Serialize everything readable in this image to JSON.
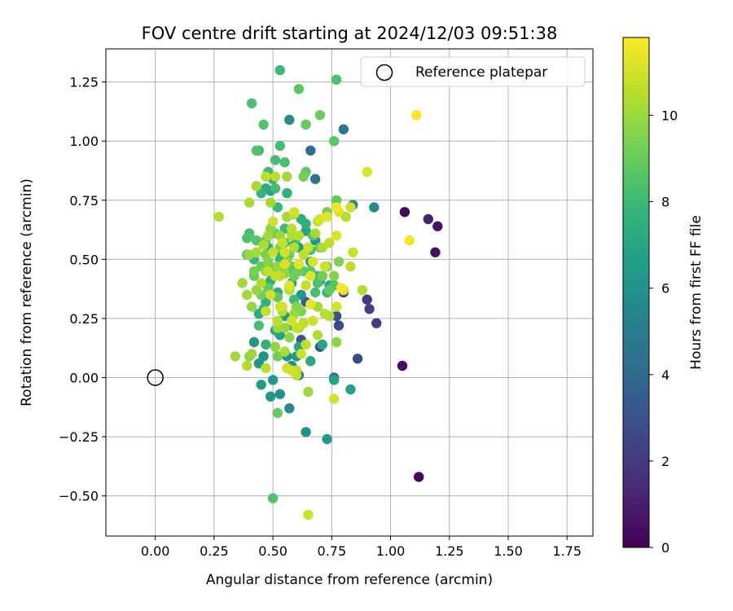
{
  "chart_data": {
    "type": "scatter",
    "title": "FOV centre drift starting at 2024/12/03 09:51:38",
    "xlabel": "Angular distance from reference (arcmin)",
    "ylabel": "Rotation from reference (arcmin)",
    "xlim": [
      -0.21,
      1.86
    ],
    "ylim": [
      -0.67,
      1.39
    ],
    "x_ticks": [
      0.0,
      0.25,
      0.5,
      0.75,
      1.0,
      1.25,
      1.5,
      1.75
    ],
    "x_tick_labels": [
      "0.00",
      "0.25",
      "0.50",
      "0.75",
      "1.00",
      "1.25",
      "1.50",
      "1.75"
    ],
    "y_ticks": [
      -0.5,
      -0.25,
      0.0,
      0.25,
      0.5,
      0.75,
      1.0,
      1.25
    ],
    "y_tick_labels": [
      "−0.50",
      "−0.25",
      "0.00",
      "0.25",
      "0.50",
      "0.75",
      "1.00",
      "1.25"
    ],
    "grid": true,
    "legend": {
      "position": "top-right",
      "entries": [
        "Reference platepar"
      ]
    },
    "reference_point": {
      "label": "Reference platepar",
      "x": 0.0,
      "y": 0.0
    },
    "colorbar": {
      "label": "Hours from first FF file",
      "colormap": "viridis",
      "range": [
        0,
        11.8
      ],
      "ticks": [
        0,
        2,
        4,
        6,
        8,
        10
      ],
      "tick_labels": [
        "0",
        "2",
        "4",
        "6",
        "8",
        "10"
      ]
    },
    "colormap_stops": [
      "#440154",
      "#482878",
      "#3e4989",
      "#31688e",
      "#26828e",
      "#1f9e89",
      "#35b779",
      "#6ece58",
      "#b5de2b",
      "#fde725"
    ],
    "points": [
      [
        1.06,
        0.7,
        0.3
      ],
      [
        1.12,
        -0.42,
        0.2
      ],
      [
        1.05,
        0.05,
        0.4
      ],
      [
        1.19,
        0.53,
        0.5
      ],
      [
        1.2,
        0.64,
        0.6
      ],
      [
        1.16,
        0.67,
        1.1
      ],
      [
        0.94,
        0.23,
        2.1
      ],
      [
        0.91,
        0.29,
        2.3
      ],
      [
        0.9,
        0.33,
        2.0
      ],
      [
        0.86,
        0.08,
        2.6
      ],
      [
        0.78,
        0.22,
        2.7
      ],
      [
        0.8,
        0.36,
        2.4
      ],
      [
        0.77,
        0.26,
        3.0
      ],
      [
        0.7,
        0.13,
        3.1
      ],
      [
        0.62,
        0.16,
        3.3
      ],
      [
        0.64,
        0.32,
        3.6
      ],
      [
        0.68,
        0.84,
        4.5
      ],
      [
        0.66,
        0.96,
        4.2
      ],
      [
        0.8,
        1.05,
        4.8
      ],
      [
        0.84,
        0.73,
        5.5
      ],
      [
        0.93,
        0.72,
        5.6
      ],
      [
        0.57,
        1.09,
        5.8
      ],
      [
        0.64,
        -0.23,
        6.0
      ],
      [
        0.73,
        -0.26,
        6.4
      ],
      [
        0.83,
        -0.05,
        6.7
      ],
      [
        0.57,
        -0.13,
        5.7
      ],
      [
        0.49,
        -0.08,
        6.2
      ],
      [
        0.5,
        -0.01,
        6.3
      ],
      [
        0.53,
        -0.07,
        6.0
      ],
      [
        0.61,
        0.01,
        5.2
      ],
      [
        0.76,
        0.0,
        4.3
      ],
      [
        0.76,
        -0.01,
        6.9
      ],
      [
        0.66,
        0.07,
        7.1
      ],
      [
        0.61,
        0.13,
        7.0
      ],
      [
        0.53,
        0.18,
        6.8
      ],
      [
        0.6,
        0.09,
        6.5
      ],
      [
        0.56,
        0.09,
        6.0
      ],
      [
        0.58,
        0.05,
        5.9
      ],
      [
        0.44,
        0.06,
        6.3
      ],
      [
        0.42,
        0.15,
        6.1
      ],
      [
        0.45,
        -0.03,
        6.6
      ],
      [
        0.46,
        0.09,
        5.9
      ],
      [
        0.55,
        0.26,
        6.4
      ],
      [
        0.62,
        0.35,
        6.2
      ],
      [
        0.7,
        0.41,
        6.5
      ],
      [
        0.74,
        0.39,
        7.0
      ],
      [
        0.58,
        0.4,
        6.8
      ],
      [
        0.66,
        0.49,
        6.4
      ],
      [
        0.68,
        0.58,
        6.1
      ],
      [
        0.59,
        0.56,
        6.9
      ],
      [
        0.52,
        0.36,
        7.2
      ],
      [
        0.49,
        0.41,
        7.4
      ],
      [
        0.44,
        0.27,
        7.3
      ],
      [
        0.47,
        0.32,
        7.6
      ],
      [
        0.53,
        0.5,
        7.8
      ],
      [
        0.55,
        0.63,
        8.0
      ],
      [
        0.62,
        0.67,
        7.4
      ],
      [
        0.64,
        0.65,
        7.5
      ],
      [
        0.56,
        0.78,
        7.6
      ],
      [
        0.5,
        0.84,
        7.4
      ],
      [
        0.45,
        0.78,
        7.7
      ],
      [
        0.47,
        0.8,
        7.2
      ],
      [
        0.52,
        0.72,
        7.9
      ],
      [
        0.51,
        0.8,
        8.1
      ],
      [
        0.48,
        0.87,
        8.0
      ],
      [
        0.53,
        0.98,
        8.2
      ],
      [
        0.51,
        0.92,
        8.3
      ],
      [
        0.44,
        0.96,
        8.0
      ],
      [
        0.43,
        0.96,
        8.5
      ],
      [
        0.41,
        1.16,
        8.4
      ],
      [
        0.46,
        1.07,
        8.6
      ],
      [
        0.55,
        0.91,
        8.3
      ],
      [
        0.53,
        1.3,
        8.0
      ],
      [
        0.61,
        1.22,
        8.7
      ],
      [
        0.64,
        1.07,
        9.0
      ],
      [
        0.77,
        1.26,
        8.4
      ],
      [
        0.7,
        1.11,
        9.1
      ],
      [
        0.76,
        1.0,
        8.7
      ],
      [
        0.63,
        0.85,
        9.3
      ],
      [
        0.64,
        0.87,
        8.8
      ],
      [
        0.77,
        0.75,
        8.9
      ],
      [
        0.73,
        0.7,
        9.3
      ],
      [
        0.67,
        0.6,
        8.5
      ],
      [
        0.6,
        0.59,
        8.2
      ],
      [
        0.55,
        0.57,
        8.6
      ],
      [
        0.51,
        0.61,
        8.9
      ],
      [
        0.47,
        0.58,
        9.0
      ],
      [
        0.43,
        0.58,
        8.6
      ],
      [
        0.39,
        0.59,
        8.4
      ],
      [
        0.39,
        0.52,
        8.7
      ],
      [
        0.4,
        0.61,
        8.3
      ],
      [
        0.42,
        0.43,
        8.9
      ],
      [
        0.45,
        0.47,
        9.0
      ],
      [
        0.5,
        0.46,
        8.6
      ],
      [
        0.58,
        0.47,
        8.8
      ],
      [
        0.61,
        0.45,
        9.2
      ],
      [
        0.66,
        0.45,
        8.7
      ],
      [
        0.69,
        0.4,
        8.4
      ],
      [
        0.74,
        0.37,
        8.9
      ],
      [
        0.71,
        0.43,
        9.2
      ],
      [
        0.76,
        0.39,
        8.5
      ],
      [
        0.73,
        0.47,
        9.4
      ],
      [
        0.78,
        0.49,
        9.5
      ],
      [
        0.76,
        0.43,
        9.6
      ],
      [
        0.7,
        0.55,
        9.0
      ],
      [
        0.6,
        0.3,
        9.6
      ],
      [
        0.57,
        0.38,
        9.4
      ],
      [
        0.55,
        0.44,
        9.8
      ],
      [
        0.52,
        0.47,
        9.9
      ],
      [
        0.48,
        0.49,
        9.6
      ],
      [
        0.47,
        0.45,
        10.0
      ],
      [
        0.43,
        0.37,
        9.8
      ],
      [
        0.41,
        0.3,
        9.9
      ],
      [
        0.39,
        0.35,
        10.1
      ],
      [
        0.37,
        0.4,
        10.2
      ],
      [
        0.4,
        0.52,
        10.0
      ],
      [
        0.43,
        0.53,
        10.1
      ],
      [
        0.46,
        0.56,
        10.3
      ],
      [
        0.53,
        0.6,
        10.0
      ],
      [
        0.56,
        0.68,
        10.2
      ],
      [
        0.59,
        0.69,
        10.4
      ],
      [
        0.56,
        0.85,
        10.1
      ],
      [
        0.51,
        0.85,
        10.5
      ],
      [
        0.47,
        0.85,
        10.6
      ],
      [
        0.49,
        0.74,
        10.2
      ],
      [
        0.4,
        0.74,
        10.3
      ],
      [
        0.43,
        0.81,
        10.2
      ],
      [
        0.4,
        0.09,
        9.7
      ],
      [
        0.41,
        0.1,
        10.0
      ],
      [
        0.39,
        0.05,
        10.4
      ],
      [
        0.34,
        0.09,
        10.1
      ],
      [
        0.27,
        0.68,
        10.5
      ],
      [
        0.52,
        0.09,
        9.2
      ],
      [
        0.51,
        0.13,
        9.8
      ],
      [
        0.57,
        0.17,
        9.7
      ],
      [
        0.55,
        0.11,
        10.3
      ],
      [
        0.61,
        0.21,
        10.2
      ],
      [
        0.59,
        0.27,
        10.0
      ],
      [
        0.52,
        0.24,
        10.5
      ],
      [
        0.54,
        0.28,
        10.4
      ],
      [
        0.63,
        0.23,
        10.6
      ],
      [
        0.6,
        0.21,
        10.8
      ],
      [
        0.58,
        0.24,
        11.0
      ],
      [
        0.69,
        0.18,
        10.4
      ],
      [
        0.72,
        0.27,
        10.5
      ],
      [
        0.67,
        0.24,
        10.9
      ],
      [
        0.69,
        0.3,
        10.1
      ],
      [
        0.77,
        0.15,
        9.8
      ],
      [
        0.6,
        0.03,
        10.8
      ],
      [
        0.6,
        0.01,
        10.6
      ],
      [
        0.62,
        0.1,
        10.9
      ],
      [
        0.47,
        0.04,
        10.5
      ],
      [
        0.52,
        -0.15,
        9.0
      ],
      [
        0.5,
        -0.51,
        8.5
      ],
      [
        0.65,
        -0.06,
        10.0
      ],
      [
        0.65,
        -0.58,
        10.9
      ],
      [
        0.76,
        -0.09,
        11.0
      ],
      [
        0.88,
        0.37,
        10.4
      ],
      [
        0.83,
        0.47,
        10.6
      ],
      [
        0.84,
        0.53,
        10.9
      ],
      [
        0.81,
        0.68,
        10.4
      ],
      [
        0.83,
        0.72,
        10.9
      ],
      [
        0.77,
        0.6,
        11.1
      ],
      [
        0.74,
        0.57,
        10.6
      ],
      [
        0.78,
        0.7,
        11.2
      ],
      [
        0.73,
        0.68,
        11.3
      ],
      [
        0.77,
        0.72,
        11.5
      ],
      [
        0.7,
        0.67,
        11.0
      ],
      [
        0.72,
        0.47,
        10.9
      ],
      [
        0.67,
        0.49,
        11.1
      ],
      [
        0.66,
        0.43,
        11.3
      ],
      [
        0.64,
        0.39,
        10.8
      ],
      [
        0.57,
        0.39,
        11.2
      ],
      [
        0.53,
        0.43,
        10.7
      ],
      [
        0.49,
        0.35,
        11.0
      ],
      [
        0.47,
        0.28,
        10.8
      ],
      [
        0.54,
        0.3,
        11.0
      ],
      [
        0.66,
        0.31,
        11.4
      ],
      [
        0.79,
        0.38,
        11.6
      ],
      [
        0.8,
        0.37,
        11.2
      ],
      [
        0.77,
        0.3,
        11.0
      ],
      [
        0.74,
        0.26,
        10.3
      ],
      [
        0.55,
        0.21,
        9.9
      ],
      [
        0.45,
        0.4,
        10.4
      ],
      [
        0.58,
        0.63,
        10.6
      ],
      [
        0.63,
        0.52,
        10.7
      ],
      [
        0.61,
        0.48,
        11.3
      ],
      [
        0.55,
        0.53,
        11.0
      ],
      [
        0.5,
        0.66,
        10.9
      ],
      [
        0.54,
        0.57,
        10.8
      ],
      [
        0.59,
        0.7,
        11.0
      ],
      [
        0.65,
        0.55,
        10.9
      ],
      [
        0.68,
        0.61,
        10.2
      ],
      [
        0.69,
        0.66,
        10.8
      ],
      [
        0.59,
        0.55,
        10.4
      ],
      [
        0.5,
        0.53,
        10.8
      ],
      [
        0.48,
        0.6,
        10.1
      ],
      [
        0.51,
        0.43,
        10.6
      ],
      [
        0.58,
        0.6,
        10.3
      ],
      [
        0.43,
        0.81,
        10.0
      ],
      [
        0.9,
        0.87,
        11.2
      ],
      [
        1.11,
        1.11,
        11.8
      ],
      [
        1.08,
        0.58,
        11.6
      ],
      [
        0.56,
        0.04,
        10.9
      ],
      [
        0.58,
        0.03,
        11.0
      ],
      [
        0.48,
        0.45,
        10.7
      ],
      [
        0.61,
        0.6,
        10.5
      ],
      [
        0.55,
        0.48,
        11.1
      ],
      [
        0.53,
        0.3,
        10.9
      ],
      [
        0.52,
        0.21,
        10.1
      ],
      [
        0.64,
        0.14,
        10.7
      ],
      [
        0.71,
        0.55,
        10.3
      ],
      [
        0.57,
        0.37,
        10.5
      ],
      [
        0.53,
        0.55,
        9.5
      ],
      [
        0.59,
        0.43,
        9.1
      ],
      [
        0.42,
        0.45,
        9.3
      ],
      [
        0.49,
        0.63,
        9.7
      ],
      [
        0.47,
        0.52,
        9.4
      ],
      [
        0.56,
        0.49,
        9.7
      ],
      [
        0.63,
        0.45,
        8.6
      ],
      [
        0.66,
        0.54,
        8.2
      ],
      [
        0.52,
        0.34,
        8.8
      ],
      [
        0.44,
        0.22,
        8.3
      ],
      [
        0.46,
        0.29,
        7.9
      ],
      [
        0.59,
        0.33,
        8.0
      ],
      [
        0.54,
        0.52,
        7.0
      ],
      [
        0.48,
        0.55,
        7.3
      ],
      [
        0.64,
        0.62,
        6.8
      ],
      [
        0.51,
        0.2,
        7.1
      ],
      [
        0.61,
        0.55,
        6.5
      ],
      [
        0.71,
        0.14,
        6.9
      ],
      [
        0.56,
        0.68,
        6.6
      ],
      [
        0.49,
        0.79,
        6.7
      ],
      [
        0.47,
        0.14,
        7.5
      ],
      [
        0.69,
        0.43,
        7.8
      ],
      [
        0.58,
        0.22,
        7.7
      ],
      [
        0.57,
        0.45,
        8.1
      ],
      [
        0.48,
        0.38,
        8.9
      ],
      [
        0.62,
        0.28,
        9.5
      ],
      [
        0.45,
        0.35,
        9.3
      ],
      [
        0.68,
        0.36,
        8.3
      ],
      [
        0.73,
        0.36,
        7.6
      ],
      [
        0.42,
        0.5,
        7.9
      ],
      [
        0.54,
        0.44,
        8.4
      ],
      [
        0.57,
        0.52,
        9.1
      ]
    ]
  }
}
